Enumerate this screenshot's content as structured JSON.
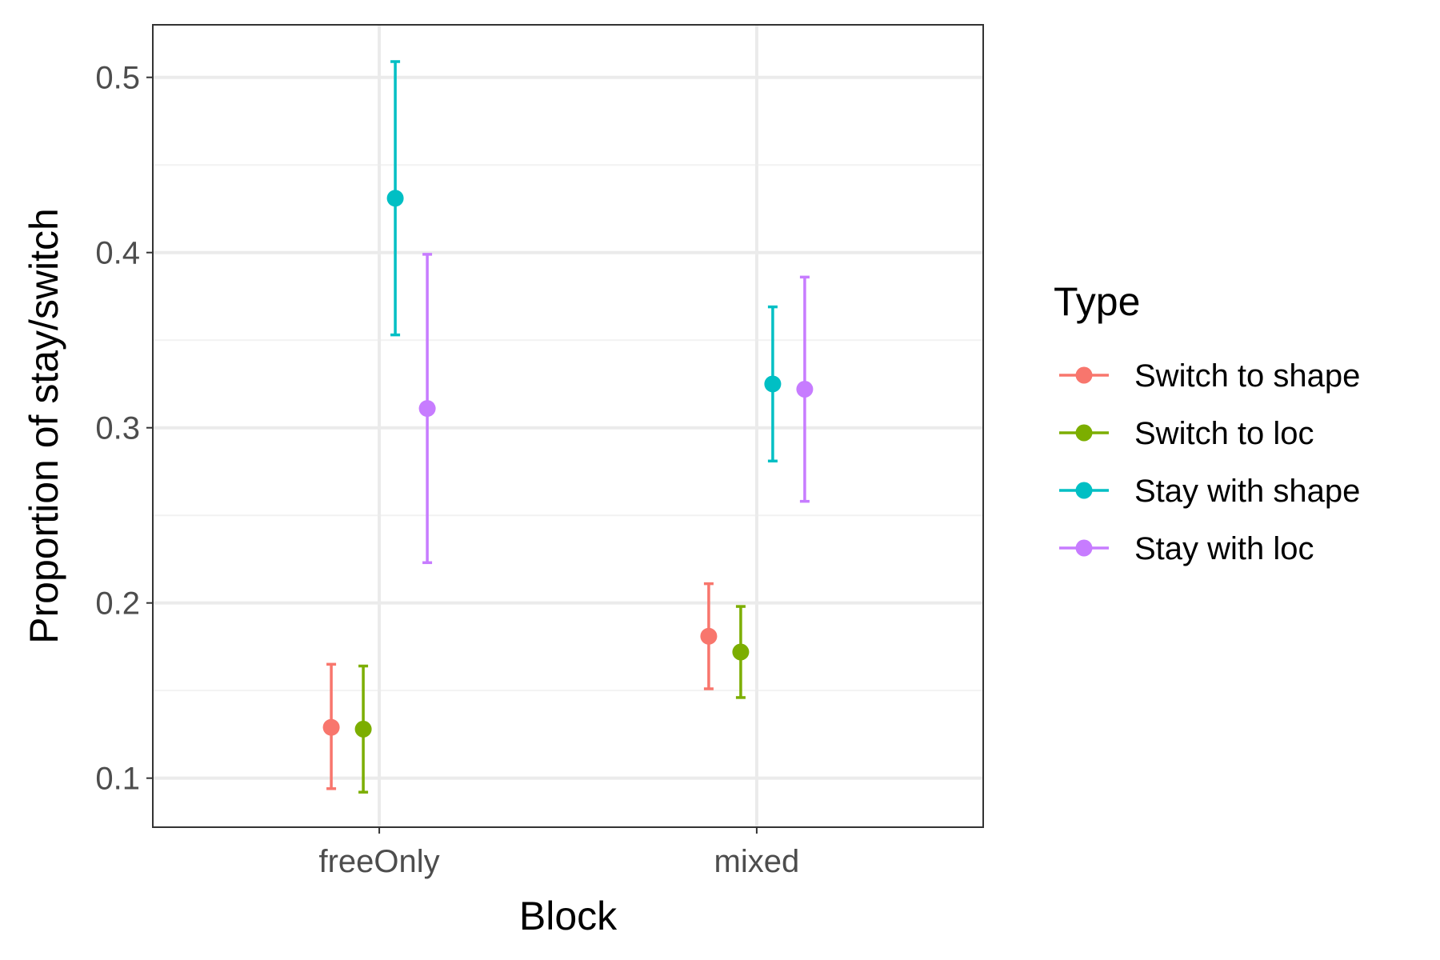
{
  "chart_data": {
    "type": "scatter",
    "subtype": "point-with-error-bars",
    "xlabel": "Block",
    "ylabel": "Proportion of stay/switch",
    "categories": [
      "freeOnly",
      "mixed"
    ],
    "ylim": [
      0.072,
      0.53
    ],
    "yticks": [
      0.1,
      0.2,
      0.3,
      0.4,
      0.5
    ],
    "ytick_labels": [
      "0.1",
      "0.2",
      "0.3",
      "0.4",
      "0.5"
    ],
    "grid": true,
    "legend": {
      "title": "Type",
      "position": "right"
    },
    "series": [
      {
        "name": "Switch to shape",
        "color": "#F8766D",
        "values": [
          0.129,
          0.181
        ],
        "lower": [
          0.094,
          0.151
        ],
        "upper": [
          0.165,
          0.211
        ]
      },
      {
        "name": "Switch to loc",
        "color": "#7CAE00",
        "values": [
          0.128,
          0.172
        ],
        "lower": [
          0.092,
          0.146
        ],
        "upper": [
          0.164,
          0.198
        ]
      },
      {
        "name": "Stay with shape",
        "color": "#00BFC4",
        "values": [
          0.431,
          0.325
        ],
        "lower": [
          0.353,
          0.281
        ],
        "upper": [
          0.509,
          0.369
        ]
      },
      {
        "name": "Stay with loc",
        "color": "#C77CFF",
        "values": [
          0.311,
          0.322
        ],
        "lower": [
          0.223,
          0.258
        ],
        "upper": [
          0.399,
          0.386
        ]
      }
    ]
  }
}
